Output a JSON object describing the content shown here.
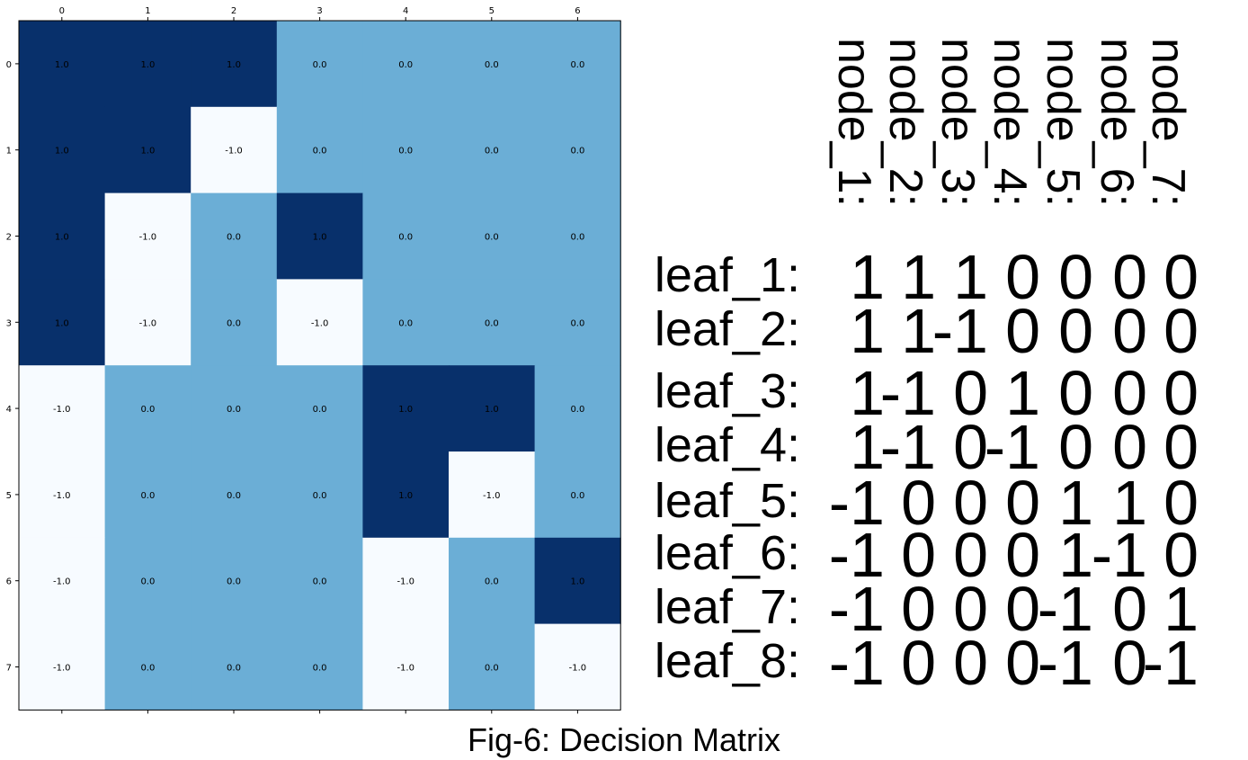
{
  "chart_data": {
    "type": "heatmap",
    "colormap": "Blues",
    "x_ticks": [
      "0",
      "1",
      "2",
      "3",
      "4",
      "5",
      "6"
    ],
    "y_ticks": [
      "0",
      "1",
      "2",
      "3",
      "4",
      "5",
      "6",
      "7"
    ],
    "values": [
      [
        1.0,
        1.0,
        1.0,
        0.0,
        0.0,
        0.0,
        0.0
      ],
      [
        1.0,
        1.0,
        -1.0,
        0.0,
        0.0,
        0.0,
        0.0
      ],
      [
        1.0,
        -1.0,
        0.0,
        1.0,
        0.0,
        0.0,
        0.0
      ],
      [
        1.0,
        -1.0,
        0.0,
        -1.0,
        0.0,
        0.0,
        0.0
      ],
      [
        -1.0,
        0.0,
        0.0,
        0.0,
        1.0,
        1.0,
        0.0
      ],
      [
        -1.0,
        0.0,
        0.0,
        0.0,
        1.0,
        -1.0,
        0.0
      ],
      [
        -1.0,
        0.0,
        0.0,
        0.0,
        -1.0,
        0.0,
        1.0
      ],
      [
        -1.0,
        0.0,
        0.0,
        0.0,
        -1.0,
        0.0,
        -1.0
      ]
    ],
    "cell_labels": [
      [
        "1.0",
        "1.0",
        "1.0",
        "0.0",
        "0.0",
        "0.0",
        "0.0"
      ],
      [
        "1.0",
        "1.0",
        "-1.0",
        "0.0",
        "0.0",
        "0.0",
        "0.0"
      ],
      [
        "1.0",
        "-1.0",
        "0.0",
        "1.0",
        "0.0",
        "0.0",
        "0.0"
      ],
      [
        "1.0",
        "-1.0",
        "0.0",
        "-1.0",
        "0.0",
        "0.0",
        "0.0"
      ],
      [
        "-1.0",
        "0.0",
        "0.0",
        "0.0",
        "1.0",
        "1.0",
        "0.0"
      ],
      [
        "-1.0",
        "0.0",
        "0.0",
        "0.0",
        "1.0",
        "-1.0",
        "0.0"
      ],
      [
        "-1.0",
        "0.0",
        "0.0",
        "0.0",
        "-1.0",
        "0.0",
        "1.0"
      ],
      [
        "-1.0",
        "0.0",
        "0.0",
        "0.0",
        "-1.0",
        "0.0",
        "-1.0"
      ]
    ],
    "vmin": -1,
    "vmax": 1,
    "grid": false,
    "x_tick_position": "top",
    "colors": {
      "high": "#08306b",
      "mid": "#6baed6",
      "low": "#f7fbff"
    }
  },
  "matrix_text": {
    "column_labels": [
      "node_1:",
      "node_2:",
      "node_3:",
      "node_4:",
      "node_5:",
      "node_6:",
      "node_7:"
    ],
    "rows": [
      {
        "label": "leaf_1:",
        "cells": [
          "1",
          "1",
          "1",
          "0",
          "0",
          "0",
          "0"
        ]
      },
      {
        "label": "leaf_2:",
        "cells": [
          "1",
          "1",
          "-1",
          "0",
          "0",
          "0",
          "0"
        ]
      },
      {
        "label": "leaf_3:",
        "cells": [
          "1",
          "-1",
          "0",
          "1",
          "0",
          "0",
          "0"
        ]
      },
      {
        "label": "leaf_4:",
        "cells": [
          "1",
          "-1",
          "0",
          "-1",
          "0",
          "0",
          "0"
        ]
      },
      {
        "label": "leaf_5:",
        "cells": [
          "-1",
          "0",
          "0",
          "0",
          "1",
          "1",
          "0"
        ]
      },
      {
        "label": "leaf_6:",
        "cells": [
          "-1",
          "0",
          "0",
          "0",
          "1",
          "-1",
          "0"
        ]
      },
      {
        "label": "leaf_7:",
        "cells": [
          "-1",
          "0",
          "0",
          "0",
          "-1",
          "0",
          "1"
        ]
      },
      {
        "label": "leaf_8:",
        "cells": [
          "-1",
          "0",
          "0",
          "0",
          "-1",
          "0",
          "-1"
        ]
      }
    ]
  },
  "caption": "Fig-6: Decision Matrix"
}
